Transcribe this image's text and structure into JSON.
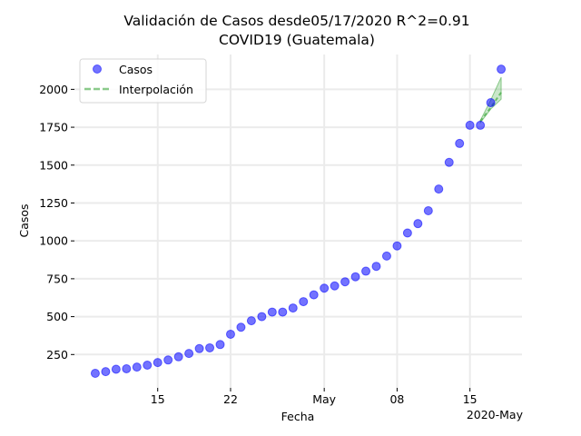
{
  "chart_data": {
    "type": "scatter",
    "title": "Validación de Casos desde05/17/2020 R^2=0.91",
    "subtitle": "COVID19 (Guatemala)",
    "xlabel": "Fecha",
    "ylabel": "Casos",
    "x_offset_label": "2020-May",
    "xlim": [
      "2020-04-07",
      "2020-05-20"
    ],
    "ylim": [
      30,
      2230
    ],
    "x_ticks": [
      {
        "date": "2020-04-15",
        "label": "15"
      },
      {
        "date": "2020-04-22",
        "label": "22"
      },
      {
        "date": "2020-05-01",
        "label": "May"
      },
      {
        "date": "2020-05-08",
        "label": "08"
      },
      {
        "date": "2020-05-15",
        "label": "15"
      }
    ],
    "y_ticks": [
      250,
      500,
      750,
      1000,
      1250,
      1500,
      1750,
      2000
    ],
    "grid": true,
    "legend_position": "top-left",
    "series": [
      {
        "name": "Casos",
        "kind": "scatter",
        "color": "#0000ff",
        "points": [
          [
            "2020-04-09",
            126
          ],
          [
            "2020-04-10",
            137
          ],
          [
            "2020-04-11",
            153
          ],
          [
            "2020-04-12",
            156
          ],
          [
            "2020-04-13",
            167
          ],
          [
            "2020-04-14",
            180
          ],
          [
            "2020-04-15",
            197
          ],
          [
            "2020-04-16",
            214
          ],
          [
            "2020-04-17",
            235
          ],
          [
            "2020-04-18",
            257
          ],
          [
            "2020-04-19",
            289
          ],
          [
            "2020-04-20",
            294
          ],
          [
            "2020-04-21",
            316
          ],
          [
            "2020-04-22",
            384
          ],
          [
            "2020-04-23",
            430
          ],
          [
            "2020-04-24",
            473
          ],
          [
            "2020-04-25",
            500
          ],
          [
            "2020-04-26",
            530
          ],
          [
            "2020-04-27",
            530
          ],
          [
            "2020-04-28",
            557
          ],
          [
            "2020-04-29",
            599
          ],
          [
            "2020-04-30",
            644
          ],
          [
            "2020-05-01",
            688
          ],
          [
            "2020-05-02",
            703
          ],
          [
            "2020-05-03",
            730
          ],
          [
            "2020-05-04",
            763
          ],
          [
            "2020-05-05",
            800
          ],
          [
            "2020-05-06",
            832
          ],
          [
            "2020-05-07",
            900
          ],
          [
            "2020-05-08",
            967
          ],
          [
            "2020-05-09",
            1052
          ],
          [
            "2020-05-10",
            1114
          ],
          [
            "2020-05-11",
            1199
          ],
          [
            "2020-05-12",
            1342
          ],
          [
            "2020-05-13",
            1518
          ],
          [
            "2020-05-14",
            1643
          ],
          [
            "2020-05-15",
            1763
          ],
          [
            "2020-05-16",
            1763
          ],
          [
            "2020-05-17",
            1912
          ],
          [
            "2020-05-18",
            2133
          ]
        ]
      },
      {
        "name": "Interpolación",
        "kind": "line",
        "style": "dashed",
        "color": "#2ca02c",
        "points": [
          [
            "2020-05-16",
            1790
          ],
          [
            "2020-05-17",
            1880
          ],
          [
            "2020-05-18",
            1980
          ]
        ],
        "band": {
          "color": "#2ca02c",
          "upper": [
            [
              "2020-05-16",
              1795
            ],
            [
              "2020-05-17",
              1930
            ],
            [
              "2020-05-18",
              2080
            ]
          ],
          "lower": [
            [
              "2020-05-16",
              1780
            ],
            [
              "2020-05-17",
              1870
            ],
            [
              "2020-05-18",
              1935
            ]
          ]
        }
      }
    ]
  }
}
